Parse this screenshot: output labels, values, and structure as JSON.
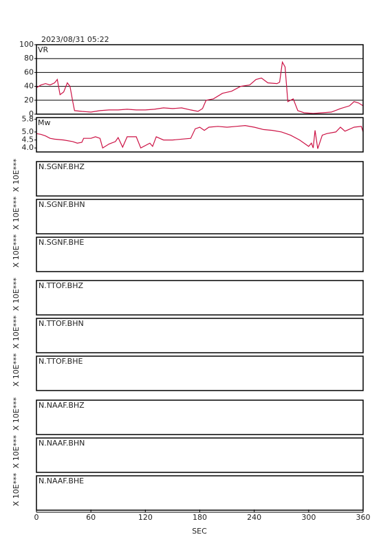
{
  "timestamp": "2023/08/31 05:22",
  "xaxis": {
    "label": "SEC",
    "xlim": [
      0,
      360
    ],
    "xticks": [
      0,
      60,
      120,
      180,
      240,
      300,
      360
    ]
  },
  "chart_data": [
    {
      "type": "line",
      "ylabel": "VR",
      "color": "#cc1144",
      "grid": true,
      "ylim": [
        0,
        100
      ],
      "yticks": [
        0,
        20,
        40,
        60,
        80,
        100
      ],
      "x": [
        0,
        5,
        10,
        15,
        20,
        23,
        26,
        30,
        34,
        37,
        40,
        42,
        50,
        60,
        70,
        80,
        90,
        100,
        110,
        120,
        130,
        140,
        150,
        160,
        170,
        178,
        183,
        187,
        195,
        205,
        215,
        225,
        235,
        242,
        248,
        255,
        265,
        268,
        271,
        274,
        277,
        283,
        288,
        295,
        305,
        315,
        325,
        335,
        345,
        350,
        355,
        360
      ],
      "values": [
        38,
        42,
        44,
        42,
        45,
        50,
        28,
        32,
        45,
        40,
        18,
        5,
        4,
        3,
        5,
        6,
        6,
        7,
        6,
        6,
        7,
        9,
        8,
        9,
        6,
        4,
        8,
        20,
        22,
        30,
        33,
        40,
        42,
        50,
        52,
        45,
        44,
        46,
        75,
        68,
        18,
        22,
        5,
        2,
        1,
        2,
        3,
        8,
        12,
        18,
        16,
        12
      ]
    },
    {
      "type": "line",
      "ylabel": "Mw",
      "color": "#cc1144",
      "grid": false,
      "ylim": [
        3.75,
        5.9
      ],
      "yticks": [
        {
          "value": 4,
          "label": "4.0"
        },
        4.5,
        {
          "value": 5,
          "label": "5.0"
        },
        5.8
      ],
      "x": [
        0,
        5,
        10,
        15,
        20,
        30,
        40,
        45,
        50,
        52,
        60,
        65,
        70,
        73,
        80,
        87,
        90,
        95,
        100,
        110,
        115,
        125,
        128,
        132,
        140,
        150,
        170,
        175,
        180,
        185,
        190,
        200,
        210,
        220,
        230,
        240,
        250,
        260,
        270,
        280,
        290,
        295,
        300,
        303,
        305,
        307,
        310,
        315,
        320,
        330,
        335,
        340,
        350,
        358,
        360
      ],
      "values": [
        4.9,
        4.85,
        4.75,
        4.6,
        4.55,
        4.5,
        4.4,
        4.3,
        4.35,
        4.6,
        4.6,
        4.7,
        4.6,
        4.0,
        4.25,
        4.4,
        4.65,
        4.05,
        4.7,
        4.7,
        4.0,
        4.3,
        4.1,
        4.7,
        4.5,
        4.5,
        4.6,
        5.2,
        5.3,
        5.1,
        5.3,
        5.35,
        5.3,
        5.35,
        5.4,
        5.3,
        5.15,
        5.1,
        5.0,
        4.8,
        4.5,
        4.3,
        4.1,
        4.3,
        4.0,
        5.1,
        3.95,
        4.8,
        4.9,
        5.0,
        5.3,
        5.05,
        5.3,
        5.35,
        5.0
      ]
    }
  ],
  "panels": [
    {
      "station": "N.SGNF.BHZ",
      "axis_label": "X 10E***"
    },
    {
      "station": "N.SGNF.BHN",
      "axis_label": "X 10E***"
    },
    {
      "station": "N.SGNF.BHE",
      "axis_label": "X 10E***"
    },
    {
      "station": "N.TTOF.BHZ",
      "axis_label": "X 10E***"
    },
    {
      "station": "N.TTOF.BHN",
      "axis_label": "X 10E***"
    },
    {
      "station": "N.TTOF.BHE",
      "axis_label": "X 10E***"
    },
    {
      "station": "N.NAAF.BHZ",
      "axis_label": "X 10E***"
    },
    {
      "station": "N.NAAF.BHN",
      "axis_label": "X 10E***"
    },
    {
      "station": "N.NAAF.BHE",
      "axis_label": "X 10E***"
    }
  ]
}
